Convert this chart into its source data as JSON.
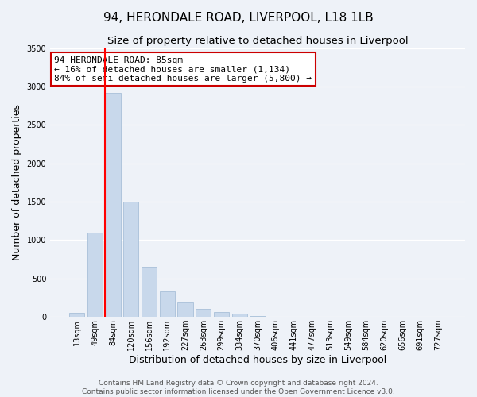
{
  "title": "94, HERONDALE ROAD, LIVERPOOL, L18 1LB",
  "subtitle": "Size of property relative to detached houses in Liverpool",
  "xlabel": "Distribution of detached houses by size in Liverpool",
  "ylabel": "Number of detached properties",
  "bar_color": "#c8d8eb",
  "bar_edgecolor": "#a8c0d8",
  "bin_labels": [
    "13sqm",
    "49sqm",
    "84sqm",
    "120sqm",
    "156sqm",
    "192sqm",
    "227sqm",
    "263sqm",
    "299sqm",
    "334sqm",
    "370sqm",
    "406sqm",
    "441sqm",
    "477sqm",
    "513sqm",
    "549sqm",
    "584sqm",
    "620sqm",
    "656sqm",
    "691sqm",
    "727sqm"
  ],
  "bar_values": [
    50,
    1100,
    2920,
    1500,
    650,
    330,
    200,
    100,
    60,
    40,
    15,
    5,
    3,
    2,
    1,
    1,
    1,
    1,
    0,
    0,
    0
  ],
  "ylim": [
    0,
    3500
  ],
  "yticks": [
    0,
    500,
    1000,
    1500,
    2000,
    2500,
    3000,
    3500
  ],
  "red_line_bar_index": 2,
  "annotation_line1": "94 HERONDALE ROAD: 85sqm",
  "annotation_line2": "← 16% of detached houses are smaller (1,134)",
  "annotation_line3": "84% of semi-detached houses are larger (5,800) →",
  "annotation_box_color": "#ffffff",
  "annotation_box_edgecolor": "#cc0000",
  "footer_line1": "Contains HM Land Registry data © Crown copyright and database right 2024.",
  "footer_line2": "Contains public sector information licensed under the Open Government Licence v3.0.",
  "bg_color": "#eef2f8",
  "grid_color": "#ffffff",
  "title_fontsize": 11,
  "subtitle_fontsize": 9.5,
  "axis_label_fontsize": 9,
  "tick_fontsize": 7,
  "annotation_fontsize": 8,
  "footer_fontsize": 6.5
}
